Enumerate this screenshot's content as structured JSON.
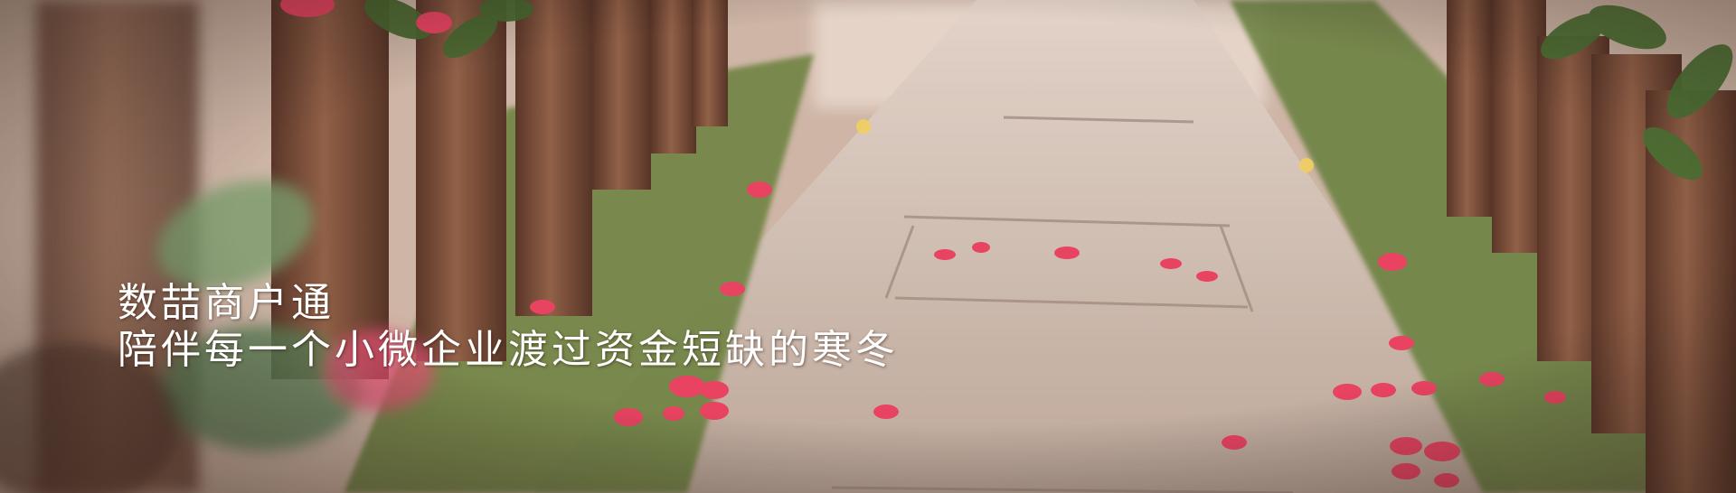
{
  "banner": {
    "headline": "数喆商户通",
    "tagline": "陪伴每一个小微企业渡过资金短缺的寒冬"
  },
  "colors": {
    "path": "#cdbfb3",
    "path_dark": "#b4a296",
    "tree_bark": "#7a4a32",
    "foliage": "#5d8a3a",
    "petal": "#e83a5c",
    "caption_text": "#ffffff"
  }
}
